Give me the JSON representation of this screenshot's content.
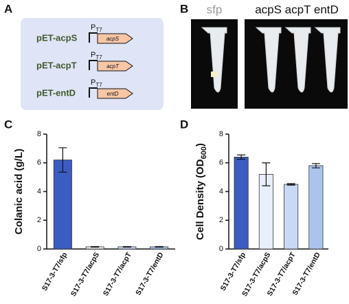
{
  "panel_labels": [
    "A",
    "B",
    "C",
    "D"
  ],
  "constructs": [
    {
      "plasmid": "pET-acpS",
      "gene": "acpS"
    },
    {
      "plasmid": "pET-acpT",
      "gene": "acpT"
    },
    {
      "plasmid": "pET-entD",
      "gene": "entD"
    }
  ],
  "promoter": {
    "label": "P",
    "subscript": "T7"
  },
  "photo_labels": {
    "left": "sfp",
    "right": "acpS acpT entD"
  },
  "chart_data": [
    {
      "type": "bar",
      "ylabel": "Colanic acid (g/L)",
      "categories": [
        "S17-3-T7/sfp",
        "S17-3-T7/acpS",
        "S17-3-T7/acpT",
        "S17-3-T7/entD"
      ],
      "values": [
        6.2,
        0.15,
        0.15,
        0.15
      ],
      "errors": [
        0.85,
        0.02,
        0.02,
        0.02
      ],
      "colors": [
        "#3b5cc0",
        "#e9eefb",
        "#c8d8f5",
        "#aac4ee"
      ],
      "ylim": [
        0,
        8
      ],
      "yticks": [
        0,
        2,
        4,
        6,
        8
      ]
    },
    {
      "type": "bar",
      "ylabel": "Cell Density (OD",
      "ylabel_subscript": "600",
      "ylabel_end": ")",
      "categories": [
        "S17-3-T7/sfp",
        "S17-3-T7/acpS",
        "S17-3-T7/acpT",
        "S17-3-T7/entD"
      ],
      "values": [
        6.4,
        5.2,
        4.5,
        5.8
      ],
      "errors": [
        0.15,
        0.8,
        0.05,
        0.15
      ],
      "colors": [
        "#3b5cc0",
        "#e9eefb",
        "#c8d8f5",
        "#aac4ee"
      ],
      "ylim": [
        0,
        8
      ],
      "yticks": [
        0,
        2,
        4,
        6,
        8
      ]
    }
  ]
}
